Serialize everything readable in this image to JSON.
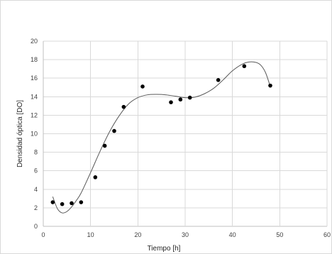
{
  "chart_data": {
    "type": "scatter",
    "title": "",
    "xlabel": "Tiempo [h]",
    "ylabel": "Densidad óptica [DO]",
    "xlim": [
      0,
      60
    ],
    "ylim": [
      0,
      20
    ],
    "xticks": [
      0,
      10,
      20,
      30,
      40,
      50,
      60
    ],
    "yticks": [
      0,
      2,
      4,
      6,
      8,
      10,
      12,
      14,
      16,
      18,
      20
    ],
    "grid": true,
    "legend": "none",
    "series": [
      {
        "points": [
          {
            "x": 2,
            "y": 2.6
          },
          {
            "x": 4,
            "y": 2.4
          },
          {
            "x": 6,
            "y": 2.5
          },
          {
            "x": 8,
            "y": 2.6
          },
          {
            "x": 11,
            "y": 5.3
          },
          {
            "x": 13,
            "y": 8.7
          },
          {
            "x": 15,
            "y": 10.3
          },
          {
            "x": 17,
            "y": 12.9
          },
          {
            "x": 21,
            "y": 15.1
          },
          {
            "x": 27,
            "y": 13.4
          },
          {
            "x": 29,
            "y": 13.7
          },
          {
            "x": 31,
            "y": 13.9
          },
          {
            "x": 37,
            "y": 15.8
          },
          {
            "x": 42.5,
            "y": 17.3
          },
          {
            "x": 48,
            "y": 15.2
          }
        ],
        "marker_color": "#000000"
      }
    ],
    "trendline": {
      "type": "polynomial",
      "color": "#595959",
      "points": [
        {
          "x": 2,
          "y": 3.2
        },
        {
          "x": 3,
          "y": 1.9
        },
        {
          "x": 4,
          "y": 1.45
        },
        {
          "x": 5,
          "y": 1.6
        },
        {
          "x": 6,
          "y": 2.1
        },
        {
          "x": 7,
          "y": 2.8
        },
        {
          "x": 8,
          "y": 3.6
        },
        {
          "x": 10,
          "y": 5.8
        },
        {
          "x": 12,
          "y": 8.1
        },
        {
          "x": 14,
          "y": 10.2
        },
        {
          "x": 16,
          "y": 11.9
        },
        {
          "x": 18,
          "y": 13.2
        },
        {
          "x": 20,
          "y": 13.9
        },
        {
          "x": 22,
          "y": 14.2
        },
        {
          "x": 24,
          "y": 14.25
        },
        {
          "x": 26,
          "y": 14.2
        },
        {
          "x": 28,
          "y": 14.05
        },
        {
          "x": 30,
          "y": 13.9
        },
        {
          "x": 32,
          "y": 13.95
        },
        {
          "x": 34,
          "y": 14.3
        },
        {
          "x": 36,
          "y": 14.9
        },
        {
          "x": 38,
          "y": 15.8
        },
        {
          "x": 40,
          "y": 16.8
        },
        {
          "x": 42,
          "y": 17.5
        },
        {
          "x": 43.5,
          "y": 17.75
        },
        {
          "x": 45,
          "y": 17.7
        },
        {
          "x": 46,
          "y": 17.4
        },
        {
          "x": 47,
          "y": 16.6
        },
        {
          "x": 48,
          "y": 15.1
        }
      ]
    }
  }
}
